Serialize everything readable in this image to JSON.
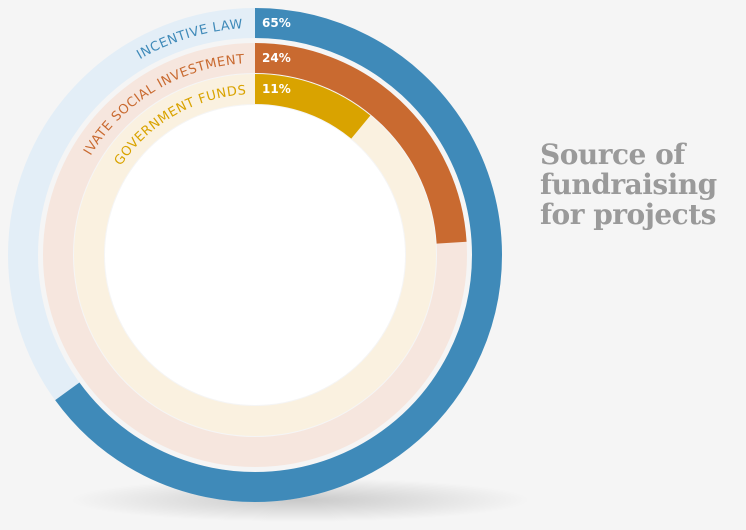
{
  "title_lines": [
    "Source of",
    "fundraising",
    "for projects"
  ],
  "chart_data": {
    "type": "radial-bar",
    "title": "Source of fundraising for projects",
    "unit": "%",
    "series": [
      {
        "name": "INCENTIVE LAW",
        "value": 65,
        "label": "65%",
        "color": "#3f8ab9",
        "track_color": "#e3eef7",
        "label_color": "#3f8ab9"
      },
      {
        "name": "PRIVATE SOCIAL INVESTMENT",
        "value": 24,
        "label": "24%",
        "color": "#c96a30",
        "track_color": "#f6e6de",
        "label_color": "#c96a30"
      },
      {
        "name": "GOVERNMENT FUNDS",
        "value": 11,
        "label": "11%",
        "color": "#d9a300",
        "track_color": "#faf1e0",
        "label_color": "#d9a300"
      }
    ],
    "max": 100
  }
}
